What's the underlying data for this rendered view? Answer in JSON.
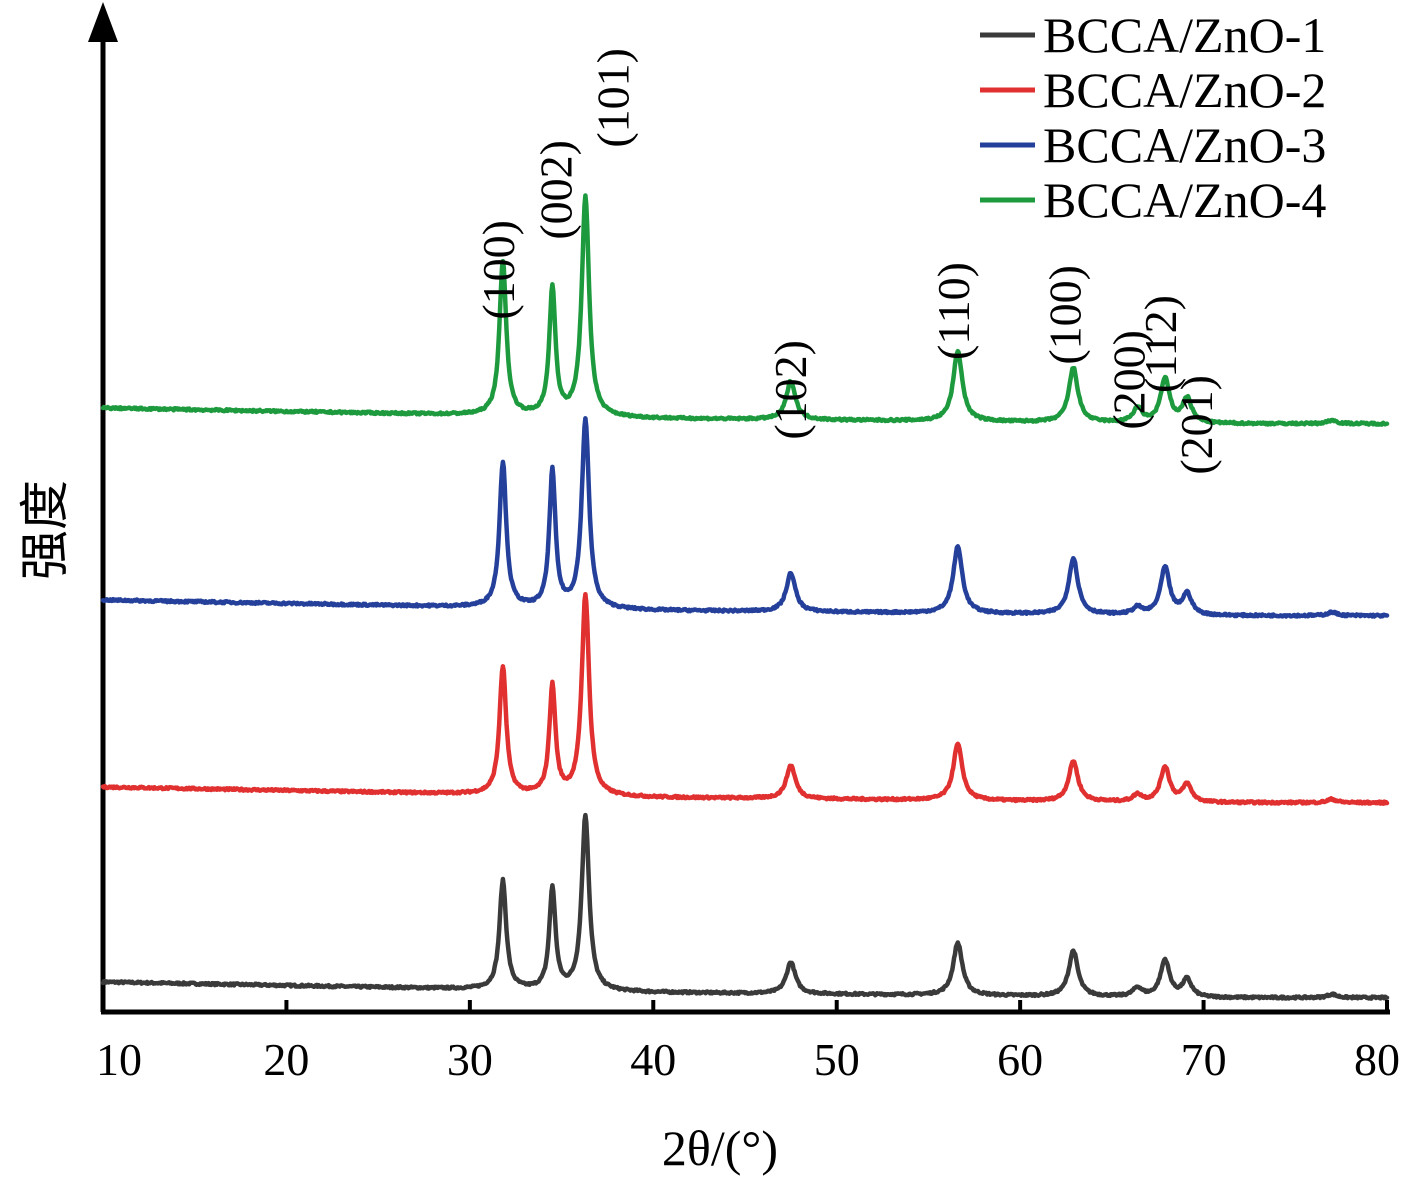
{
  "chart_data": {
    "type": "line",
    "xlabel": "2θ/(°)",
    "ylabel": "强度",
    "xlim": [
      10,
      80
    ],
    "xticks": [
      10,
      20,
      30,
      40,
      50,
      60,
      70,
      80
    ],
    "y_tick_labels": false,
    "legend_position": "top-right",
    "peaks": [
      {
        "label": "(100)",
        "x": 31.8
      },
      {
        "label": "(002)",
        "x": 34.4
      },
      {
        "label": "(101)",
        "x": 36.3
      },
      {
        "label": "(102)",
        "x": 47.5
      },
      {
        "label": "(110)",
        "x": 56.6
      },
      {
        "label": "(100)",
        "x": 62.9
      },
      {
        "label": "(200)",
        "x": 66.4
      },
      {
        "label": "(112)",
        "x": 67.9
      },
      {
        "label": "(201)",
        "x": 69.1
      }
    ],
    "series": [
      {
        "name": "BCCA/ZnO-1",
        "color": "#3a3a3a",
        "baseline": [
          [
            10,
            0.0
          ],
          [
            20,
            -0.02
          ],
          [
            30,
            -0.04
          ],
          [
            40,
            -0.06
          ],
          [
            50,
            -0.07
          ],
          [
            60,
            -0.08
          ],
          [
            70,
            -0.09
          ],
          [
            80,
            -0.09
          ]
        ],
        "peaks": [
          [
            31.8,
            0.62,
            0.22
          ],
          [
            34.5,
            0.58,
            0.2
          ],
          [
            36.3,
            1.0,
            0.24
          ],
          [
            47.5,
            0.18,
            0.3
          ],
          [
            56.6,
            0.3,
            0.3
          ],
          [
            62.9,
            0.26,
            0.3
          ],
          [
            66.4,
            0.05,
            0.3
          ],
          [
            67.9,
            0.21,
            0.3
          ],
          [
            69.1,
            0.1,
            0.3
          ],
          [
            77.0,
            0.02,
            0.3
          ]
        ]
      },
      {
        "name": "BCCA/ZnO-2",
        "color": "#e03030",
        "baseline": [
          [
            10,
            0.0
          ],
          [
            20,
            -0.02
          ],
          [
            30,
            -0.04
          ],
          [
            40,
            -0.06
          ],
          [
            50,
            -0.07
          ],
          [
            60,
            -0.08
          ],
          [
            70,
            -0.09
          ],
          [
            80,
            -0.09
          ]
        ],
        "peaks": [
          [
            31.8,
            0.73,
            0.22
          ],
          [
            34.5,
            0.62,
            0.2
          ],
          [
            36.3,
            1.15,
            0.24
          ],
          [
            47.5,
            0.19,
            0.3
          ],
          [
            56.6,
            0.32,
            0.3
          ],
          [
            62.9,
            0.23,
            0.3
          ],
          [
            66.4,
            0.04,
            0.3
          ],
          [
            67.9,
            0.2,
            0.3
          ],
          [
            69.1,
            0.1,
            0.3
          ],
          [
            77.0,
            0.02,
            0.3
          ]
        ]
      },
      {
        "name": "BCCA/ZnO-3",
        "color": "#24409a",
        "baseline": [
          [
            10,
            0.0
          ],
          [
            20,
            -0.02
          ],
          [
            30,
            -0.04
          ],
          [
            40,
            -0.06
          ],
          [
            50,
            -0.07
          ],
          [
            60,
            -0.08
          ],
          [
            70,
            -0.09
          ],
          [
            80,
            -0.09
          ]
        ],
        "peaks": [
          [
            31.8,
            0.83,
            0.22
          ],
          [
            34.5,
            0.78,
            0.2
          ],
          [
            36.3,
            1.08,
            0.24
          ],
          [
            47.5,
            0.22,
            0.3
          ],
          [
            56.6,
            0.38,
            0.3
          ],
          [
            62.9,
            0.32,
            0.3
          ],
          [
            66.4,
            0.04,
            0.3
          ],
          [
            67.9,
            0.27,
            0.3
          ],
          [
            69.1,
            0.12,
            0.3
          ],
          [
            77.0,
            0.02,
            0.3
          ]
        ]
      },
      {
        "name": "BCCA/ZnO-4",
        "color": "#1e9a3e",
        "baseline": [
          [
            10,
            0.0
          ],
          [
            20,
            -0.02
          ],
          [
            30,
            -0.04
          ],
          [
            40,
            -0.06
          ],
          [
            50,
            -0.07
          ],
          [
            60,
            -0.08
          ],
          [
            70,
            -0.09
          ],
          [
            80,
            -0.09
          ]
        ],
        "peaks": [
          [
            31.8,
            0.88,
            0.22
          ],
          [
            34.5,
            0.73,
            0.2
          ],
          [
            36.3,
            1.25,
            0.24
          ],
          [
            47.5,
            0.22,
            0.3
          ],
          [
            56.6,
            0.4,
            0.3
          ],
          [
            62.9,
            0.31,
            0.3
          ],
          [
            66.4,
            0.08,
            0.3
          ],
          [
            67.9,
            0.25,
            0.3
          ],
          [
            69.1,
            0.14,
            0.3
          ],
          [
            77.0,
            0.02,
            0.3
          ]
        ]
      }
    ]
  }
}
